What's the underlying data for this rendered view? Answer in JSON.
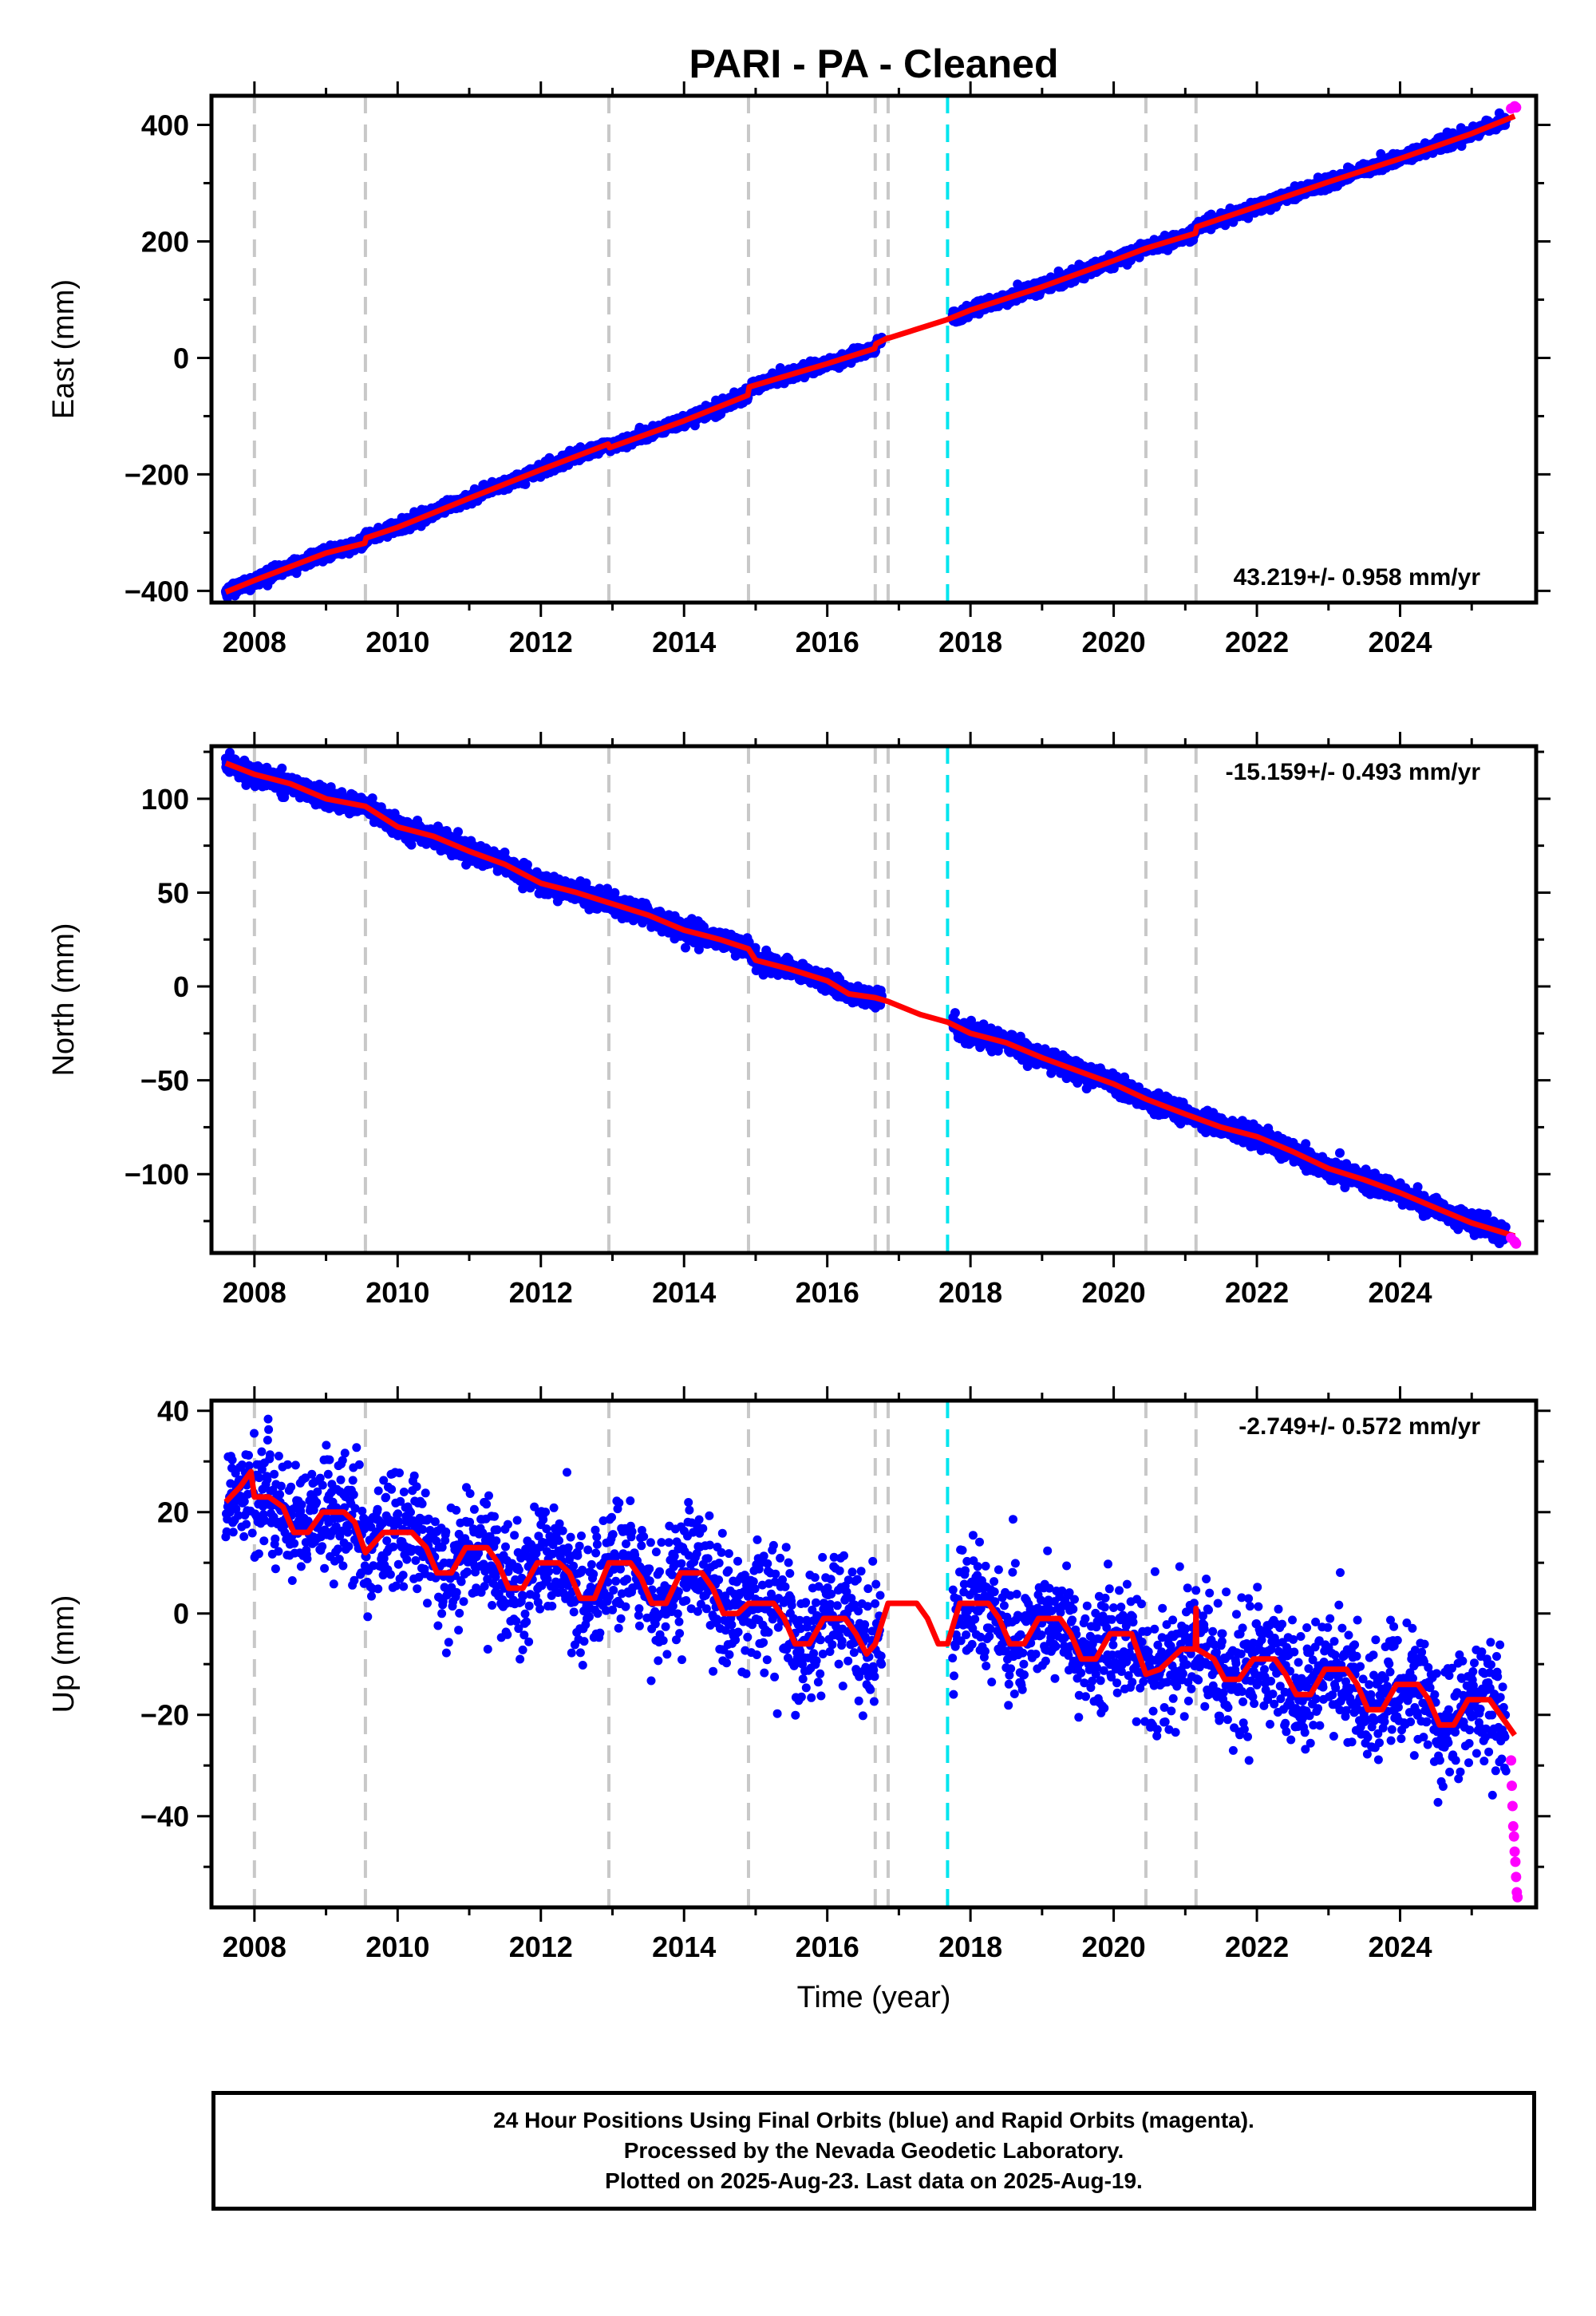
{
  "title": "PARI  - PA - Cleaned",
  "colors": {
    "final_orbits": "#0000ff",
    "rapid_orbits": "#ff00ff",
    "model": "#ff0000",
    "equipment_change": "#c8c8c8",
    "earthquake": "#00e5ee"
  },
  "chart_data": [
    {
      "type": "scatter",
      "panel": "east",
      "ylabel": "East (mm)",
      "xlabel": "",
      "xlim": [
        2007.4,
        2025.9
      ],
      "ylim": [
        -420,
        450
      ],
      "xticks": [
        2008,
        2010,
        2012,
        2014,
        2016,
        2018,
        2020,
        2022,
        2024
      ],
      "yticks": [
        -400,
        -200,
        0,
        200,
        400
      ],
      "grid": false,
      "rate_label": "43.219+/- 0.958 mm/yr",
      "rate_label_position": "bottom-right",
      "equipment_change_lines": [
        2008.0,
        2009.55,
        2012.95,
        2014.9,
        2016.67,
        2016.85,
        2020.45,
        2021.15
      ],
      "earthquake_lines": [
        2017.68
      ],
      "model_points": [
        [
          2007.6,
          -402
        ],
        [
          2008.0,
          -382
        ],
        [
          2009.0,
          -335
        ],
        [
          2009.54,
          -318
        ],
        [
          2009.56,
          -309
        ],
        [
          2010.0,
          -291
        ],
        [
          2011.0,
          -241
        ],
        [
          2012.0,
          -192
        ],
        [
          2012.94,
          -148
        ],
        [
          2012.96,
          -154
        ],
        [
          2014.0,
          -108
        ],
        [
          2014.89,
          -64
        ],
        [
          2014.91,
          -50
        ],
        [
          2016.0,
          -10
        ],
        [
          2016.66,
          16
        ],
        [
          2016.68,
          24
        ],
        [
          2016.84,
          34
        ],
        [
          2016.86,
          34
        ],
        [
          2017.68,
          66
        ],
        [
          2018.0,
          82
        ],
        [
          2019.0,
          122
        ],
        [
          2020.0,
          167
        ],
        [
          2020.45,
          188
        ],
        [
          2021.14,
          214
        ],
        [
          2021.16,
          225
        ],
        [
          2022.0,
          260
        ],
        [
          2023.0,
          302
        ],
        [
          2024.0,
          342
        ],
        [
          2025.0,
          385
        ],
        [
          2025.6,
          415
        ]
      ],
      "observed_segments": [
        [
          2007.6,
          2016.76
        ],
        [
          2017.75,
          2025.48
        ]
      ],
      "observed_scatter_mm": 5,
      "rapid_points": [
        [
          2025.55,
          428
        ],
        [
          2025.6,
          432
        ],
        [
          2025.62,
          430
        ]
      ]
    },
    {
      "type": "scatter",
      "panel": "north",
      "ylabel": "North (mm)",
      "xlabel": "",
      "xlim": [
        2007.4,
        2025.9
      ],
      "ylim": [
        -142,
        128
      ],
      "xticks": [
        2008,
        2010,
        2012,
        2014,
        2016,
        2018,
        2020,
        2022,
        2024
      ],
      "yticks": [
        -100,
        -50,
        0,
        50,
        100
      ],
      "grid": false,
      "rate_label": "-15.159+/- 0.493 mm/yr",
      "rate_label_position": "top-right",
      "equipment_change_lines": [
        2008.0,
        2009.55,
        2012.95,
        2014.9,
        2016.67,
        2016.85,
        2020.45,
        2021.15
      ],
      "earthquake_lines": [
        2017.68
      ],
      "model_points": [
        [
          2007.6,
          119
        ],
        [
          2008.0,
          113
        ],
        [
          2008.5,
          108
        ],
        [
          2009.0,
          100
        ],
        [
          2009.55,
          96
        ],
        [
          2010.0,
          85
        ],
        [
          2010.5,
          80
        ],
        [
          2011.0,
          72
        ],
        [
          2011.5,
          65
        ],
        [
          2012.0,
          55
        ],
        [
          2012.5,
          50
        ],
        [
          2013.0,
          44
        ],
        [
          2013.5,
          38
        ],
        [
          2014.0,
          30
        ],
        [
          2014.5,
          25
        ],
        [
          2014.9,
          20
        ],
        [
          2015.0,
          14
        ],
        [
          2015.5,
          9
        ],
        [
          2016.0,
          3
        ],
        [
          2016.3,
          -4
        ],
        [
          2016.67,
          -6
        ],
        [
          2016.85,
          -8
        ],
        [
          2017.3,
          -15
        ],
        [
          2017.68,
          -19
        ],
        [
          2018.0,
          -25
        ],
        [
          2018.5,
          -30
        ],
        [
          2019.0,
          -38
        ],
        [
          2019.5,
          -45
        ],
        [
          2020.0,
          -52
        ],
        [
          2020.45,
          -60
        ],
        [
          2021.0,
          -68
        ],
        [
          2021.5,
          -75
        ],
        [
          2022.0,
          -80
        ],
        [
          2022.5,
          -88
        ],
        [
          2023.0,
          -97
        ],
        [
          2023.5,
          -103
        ],
        [
          2024.0,
          -110
        ],
        [
          2024.5,
          -118
        ],
        [
          2025.0,
          -126
        ],
        [
          2025.6,
          -133
        ]
      ],
      "observed_segments": [
        [
          2007.6,
          2016.76
        ],
        [
          2017.75,
          2025.48
        ]
      ],
      "observed_scatter_mm": 2.5,
      "rapid_points": [
        [
          2025.55,
          -134
        ],
        [
          2025.6,
          -136
        ],
        [
          2025.62,
          -137
        ]
      ]
    },
    {
      "type": "scatter",
      "panel": "up",
      "ylabel": "Up (mm)",
      "xlabel": "Time (year)",
      "xlim": [
        2007.4,
        2025.9
      ],
      "ylim": [
        -58,
        42
      ],
      "xticks": [
        2008,
        2010,
        2012,
        2014,
        2016,
        2018,
        2020,
        2022,
        2024
      ],
      "yticks": [
        -40,
        -20,
        0,
        20,
        40
      ],
      "grid": false,
      "rate_label": "-2.749+/- 0.572 mm/yr",
      "rate_label_position": "top-right",
      "equipment_change_lines": [
        2008.0,
        2009.55,
        2012.95,
        2014.9,
        2016.67,
        2016.85,
        2020.45,
        2021.15
      ],
      "earthquake_lines": [
        2017.68
      ],
      "model_points": [
        [
          2007.6,
          22
        ],
        [
          2007.8,
          25
        ],
        [
          2007.95,
          28
        ],
        [
          2008.0,
          23
        ],
        [
          2008.2,
          23
        ],
        [
          2008.4,
          21
        ],
        [
          2008.55,
          16
        ],
        [
          2008.75,
          16
        ],
        [
          2008.95,
          20
        ],
        [
          2009.25,
          20
        ],
        [
          2009.4,
          18
        ],
        [
          2009.55,
          12
        ],
        [
          2009.8,
          16
        ],
        [
          2010.2,
          16
        ],
        [
          2010.4,
          13
        ],
        [
          2010.55,
          8
        ],
        [
          2010.75,
          8
        ],
        [
          2010.95,
          13
        ],
        [
          2011.25,
          13
        ],
        [
          2011.4,
          10
        ],
        [
          2011.55,
          5
        ],
        [
          2011.75,
          5
        ],
        [
          2011.95,
          10
        ],
        [
          2012.25,
          10
        ],
        [
          2012.4,
          8
        ],
        [
          2012.55,
          3
        ],
        [
          2012.75,
          3
        ],
        [
          2012.95,
          10
        ],
        [
          2013.25,
          10
        ],
        [
          2013.4,
          7
        ],
        [
          2013.55,
          2
        ],
        [
          2013.75,
          2
        ],
        [
          2013.95,
          8
        ],
        [
          2014.25,
          8
        ],
        [
          2014.4,
          5
        ],
        [
          2014.55,
          0
        ],
        [
          2014.75,
          0
        ],
        [
          2014.9,
          2
        ],
        [
          2015.25,
          2
        ],
        [
          2015.4,
          -1
        ],
        [
          2015.55,
          -6
        ],
        [
          2015.75,
          -6
        ],
        [
          2015.95,
          -1
        ],
        [
          2016.25,
          -1
        ],
        [
          2016.4,
          -4
        ],
        [
          2016.55,
          -8
        ],
        [
          2016.67,
          -6
        ],
        [
          2016.85,
          2
        ],
        [
          2017.25,
          2
        ],
        [
          2017.4,
          -1
        ],
        [
          2017.55,
          -6
        ],
        [
          2017.68,
          -6
        ],
        [
          2017.85,
          2
        ],
        [
          2018.25,
          2
        ],
        [
          2018.4,
          -1
        ],
        [
          2018.55,
          -6
        ],
        [
          2018.75,
          -6
        ],
        [
          2018.95,
          -1
        ],
        [
          2019.25,
          -1
        ],
        [
          2019.4,
          -4
        ],
        [
          2019.55,
          -9
        ],
        [
          2019.75,
          -9
        ],
        [
          2019.95,
          -4
        ],
        [
          2020.25,
          -4
        ],
        [
          2020.45,
          -12
        ],
        [
          2020.65,
          -11
        ],
        [
          2020.95,
          -7
        ],
        [
          2021.14,
          -7
        ],
        [
          2021.15,
          1
        ],
        [
          2021.16,
          -7
        ],
        [
          2021.4,
          -9
        ],
        [
          2021.55,
          -13
        ],
        [
          2021.75,
          -13
        ],
        [
          2021.95,
          -9
        ],
        [
          2022.25,
          -9
        ],
        [
          2022.4,
          -12
        ],
        [
          2022.55,
          -16
        ],
        [
          2022.75,
          -16
        ],
        [
          2022.95,
          -11
        ],
        [
          2023.25,
          -11
        ],
        [
          2023.4,
          -14
        ],
        [
          2023.55,
          -19
        ],
        [
          2023.75,
          -19
        ],
        [
          2023.95,
          -14
        ],
        [
          2024.25,
          -14
        ],
        [
          2024.4,
          -17
        ],
        [
          2024.55,
          -22
        ],
        [
          2024.75,
          -22
        ],
        [
          2024.95,
          -17
        ],
        [
          2025.25,
          -17
        ],
        [
          2025.4,
          -20
        ],
        [
          2025.6,
          -24
        ]
      ],
      "observed_segments": [
        [
          2007.6,
          2016.76
        ],
        [
          2017.75,
          2025.48
        ]
      ],
      "observed_scatter_mm": 6,
      "rapid_points": [
        [
          2025.55,
          -29
        ],
        [
          2025.56,
          -34
        ],
        [
          2025.57,
          -38
        ],
        [
          2025.58,
          -42
        ],
        [
          2025.59,
          -44
        ],
        [
          2025.6,
          -47
        ],
        [
          2025.61,
          -49
        ],
        [
          2025.62,
          -52
        ],
        [
          2025.63,
          -55
        ],
        [
          2025.64,
          -56
        ]
      ]
    }
  ],
  "footer": {
    "line1": "24 Hour Positions Using Final Orbits (blue) and Rapid Orbits (magenta).",
    "line2": "Processed by the Nevada Geodetic Laboratory.",
    "line3": "Plotted on 2025-Aug-23. Last data on 2025-Aug-19."
  }
}
